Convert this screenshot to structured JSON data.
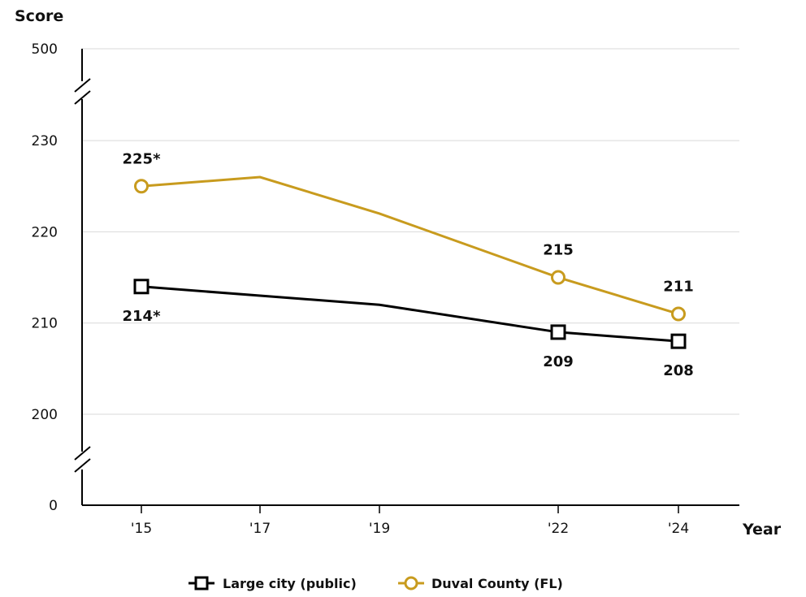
{
  "chart_data": {
    "type": "line",
    "ylabel": "Score",
    "xlabel": "Year",
    "x": [
      "'15",
      "'17",
      "'19",
      "'22",
      "'24"
    ],
    "x_positions": [
      2015,
      2017,
      2019,
      2022,
      2024
    ],
    "y_ticks": [
      0,
      200,
      210,
      220,
      230,
      500
    ],
    "y_axis_break": true,
    "y_range_main": [
      200,
      230
    ],
    "grid": true,
    "legend_position": "bottom",
    "series": [
      {
        "name": "Large city (public)",
        "marker": "square",
        "color": "#000000",
        "values": [
          214,
          213,
          212,
          209,
          208
        ],
        "labels": [
          "214*",
          "",
          "",
          "209",
          "208"
        ]
      },
      {
        "name": "Duval County (FL)",
        "marker": "circle",
        "color": "#c89b1e",
        "values": [
          225,
          226,
          222,
          215,
          211
        ],
        "labels": [
          "225*",
          "",
          "",
          "215",
          "211"
        ]
      }
    ]
  }
}
